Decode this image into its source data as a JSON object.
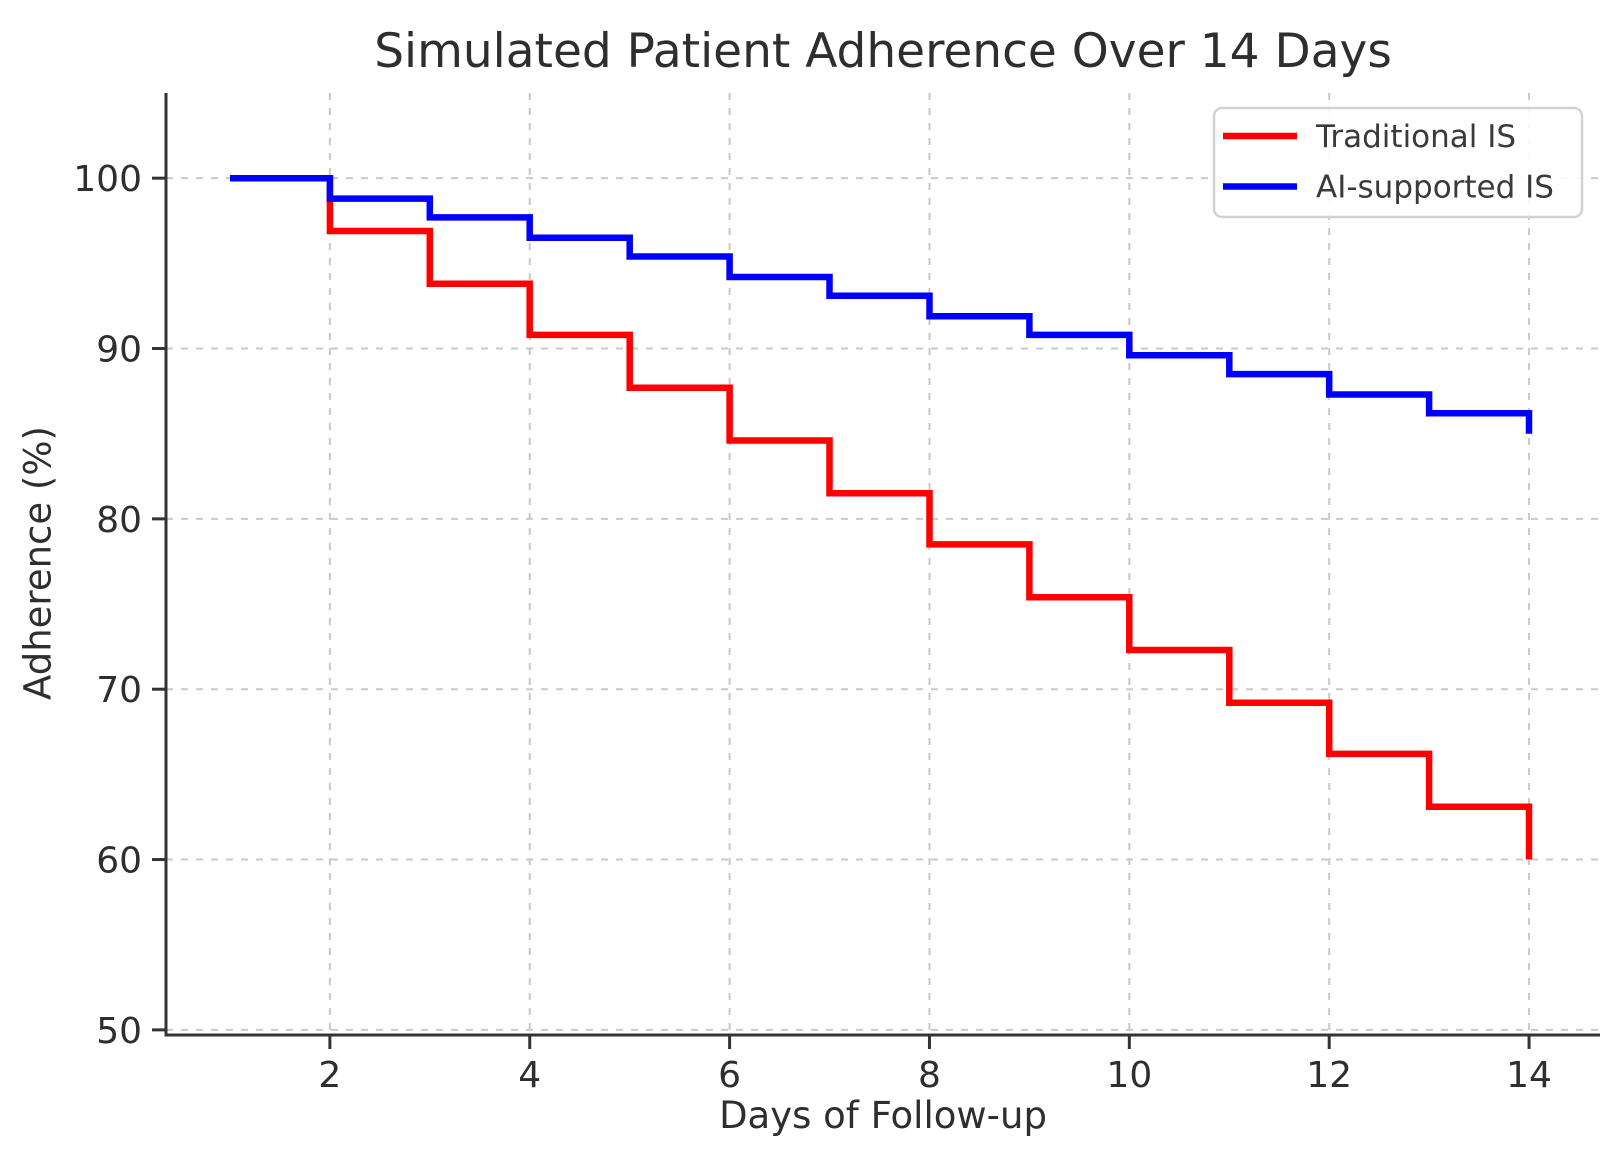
{
  "title": "Simulated Patient Adherence Over 14 Days",
  "chart_data": {
    "type": "line",
    "subtype": "step-post",
    "xlabel": "Days of Follow-up",
    "ylabel": "Adherence (%)",
    "x": [
      1,
      2,
      3,
      4,
      5,
      6,
      7,
      8,
      9,
      10,
      11,
      12,
      13,
      14
    ],
    "series": [
      {
        "name": "Traditional IS",
        "color": "#ff0000",
        "values": [
          100.0,
          96.9,
          93.8,
          90.8,
          87.7,
          84.6,
          81.5,
          78.5,
          75.4,
          72.3,
          69.2,
          66.2,
          63.1,
          60.0
        ]
      },
      {
        "name": "AI-supported IS",
        "color": "#0000ff",
        "values": [
          100.0,
          98.8,
          97.7,
          96.5,
          95.4,
          94.2,
          93.1,
          91.9,
          90.8,
          89.6,
          88.5,
          87.3,
          86.2,
          85.0
        ]
      }
    ],
    "xticks": [
      2,
      4,
      6,
      8,
      10,
      12,
      14
    ],
    "yticks": [
      50,
      60,
      70,
      80,
      90,
      100
    ],
    "xtick_labels": [
      "2",
      "4",
      "6",
      "8",
      "10",
      "12",
      "14"
    ],
    "ytick_labels": [
      "50",
      "60",
      "70",
      "80",
      "90",
      "100"
    ],
    "xlim": [
      0.36,
      14.71
    ],
    "ylim": [
      49.7,
      105
    ],
    "grid": "on",
    "grid_style": "dashed",
    "legend_position": "upper right",
    "legend_entries": [
      "Traditional IS",
      "AI-supported IS"
    ]
  },
  "colors": {
    "text": "#2e2e2e",
    "legend_text": "#3a3a3a",
    "spine": "#333333",
    "grid": "#c9c9c9",
    "legend_border": "#d2d2d2",
    "background": "#ffffff"
  }
}
